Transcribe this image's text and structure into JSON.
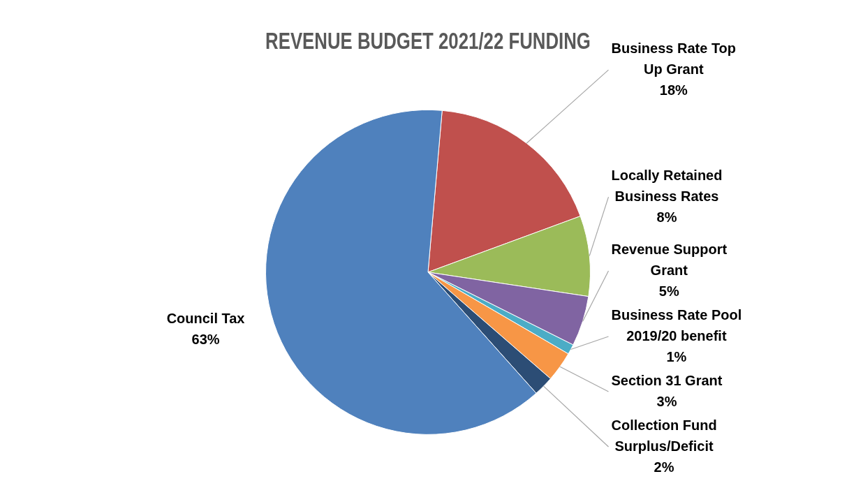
{
  "chart_data": {
    "type": "pie",
    "title": "REVENUE BUDGET 2021/22 FUNDING",
    "categories": [
      "Business Rate Top Up Grant",
      "Locally Retained Business Rates",
      "Revenue Support Grant",
      "Business Rate Pool 2019/20 benefit",
      "Section 31 Grant",
      "Collection Fund Surplus/Deficit",
      "Council Tax"
    ],
    "values": [
      18,
      8,
      5,
      1,
      3,
      2,
      63
    ],
    "value_labels": [
      "18%",
      "8%",
      "5%",
      "1%",
      "3%",
      "2%",
      "63%"
    ],
    "colors": [
      "#c0504d",
      "#9bbb59",
      "#8064a2",
      "#4bacc6",
      "#f79646",
      "#2c4d75",
      "#4f81bd"
    ],
    "legend": false
  }
}
